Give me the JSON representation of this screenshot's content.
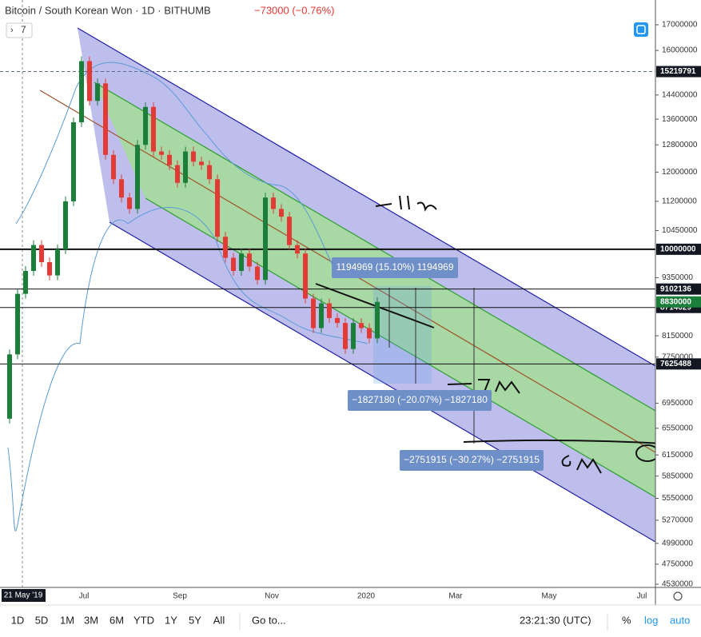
{
  "header": {
    "title": "Bitcoin / South Korean Won · 1D · BITHUMB",
    "change": "−73000 (−0.76%)",
    "indicator_count": "7"
  },
  "chart_data": {
    "type": "candle",
    "values": [
      6700000,
      7800000,
      9000000,
      9500000,
      10100000,
      9700000,
      9400000,
      10000000,
      11200000,
      13500000,
      15600000,
      14200000,
      14800000,
      12500000,
      11800000,
      11300000,
      11000000,
      12800000,
      14000000,
      12600000,
      12500000,
      12200000,
      11700000,
      12600000,
      12300000,
      12200000,
      11800000,
      10300000,
      9800000,
      9500000,
      9900000,
      9600000,
      9300000,
      11300000,
      11000000,
      10800000,
      10100000,
      9900000,
      8900000,
      8300000,
      8800000,
      8500000,
      8400000,
      7900000,
      8400000,
      8300000,
      8100000,
      8830000
    ],
    "up_color": "#1b7f3a",
    "down_color": "#e53935",
    "ylim": [
      4530000,
      17000000
    ],
    "log_scale": true,
    "yticks": [
      17000000,
      16000000,
      14400000,
      13600000,
      12800000,
      12000000,
      11200000,
      10450000,
      9350000,
      8150000,
      7750000,
      6950000,
      6550000,
      6150000,
      5850000,
      5550000,
      5270000,
      4990000,
      4750000,
      4530000
    ],
    "levels": [
      15219791,
      10000000,
      9102136,
      8714029,
      7625488
    ],
    "last_price": 8830000,
    "last_color": "#1b7f3a",
    "x_labels": [
      "Jul",
      "Sep",
      "Nov",
      "2020",
      "Mar",
      "May",
      "Jul"
    ],
    "crosshair_date": "21 May '19",
    "measures": [
      "1194969 (15.10%) 1194969",
      "−1827180 (−20.07%) −1827180",
      "−2751915 (−30.27%) −2751915"
    ]
  },
  "toolbar": {
    "ranges": [
      "1D",
      "5D",
      "1M",
      "3M",
      "6M",
      "YTD",
      "1Y",
      "5Y",
      "All"
    ],
    "goto": "Go to...",
    "time": "23:21:30 (UTC)",
    "percent": "%",
    "log": "log",
    "auto": "auto"
  }
}
